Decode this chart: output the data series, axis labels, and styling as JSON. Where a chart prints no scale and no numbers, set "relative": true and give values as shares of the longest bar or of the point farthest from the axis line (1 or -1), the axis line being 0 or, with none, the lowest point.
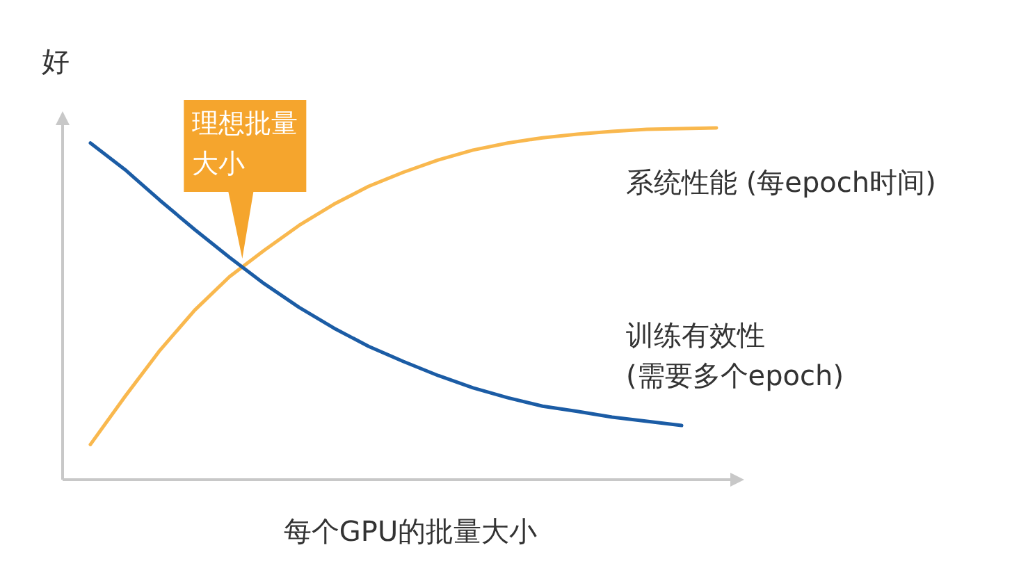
{
  "chart_data": {
    "type": "line",
    "relative": true,
    "ylabel": "好",
    "xlabel": "每个GPU的批量大小",
    "categories": [
      null,
      null,
      null,
      null,
      null,
      null,
      null,
      null,
      null,
      null,
      null,
      null,
      null,
      null,
      null,
      null,
      null,
      null,
      null
    ],
    "series": [
      {
        "name": "系统性能 (每epoch时间)",
        "color": "#f9b84e",
        "values": [
          0.1,
          0.237,
          0.368,
          0.482,
          0.577,
          0.652,
          0.723,
          0.783,
          0.834,
          0.874,
          0.909,
          0.937,
          0.957,
          0.972,
          0.982,
          0.99,
          0.996,
          0.998,
          1
        ]
      },
      {
        "name": "训练有效性 (需要多个epoch)",
        "color": "#1b5ca5",
        "values": [
          0.957,
          0.881,
          0.794,
          0.711,
          0.632,
          0.557,
          0.49,
          0.431,
          0.379,
          0.336,
          0.296,
          0.261,
          0.233,
          0.209,
          0.194,
          0.178,
          0.166,
          0.154,
          null
        ]
      }
    ],
    "annotations": [
      "理想批量大小"
    ],
    "marker": "none",
    "line_style": "solid"
  }
}
